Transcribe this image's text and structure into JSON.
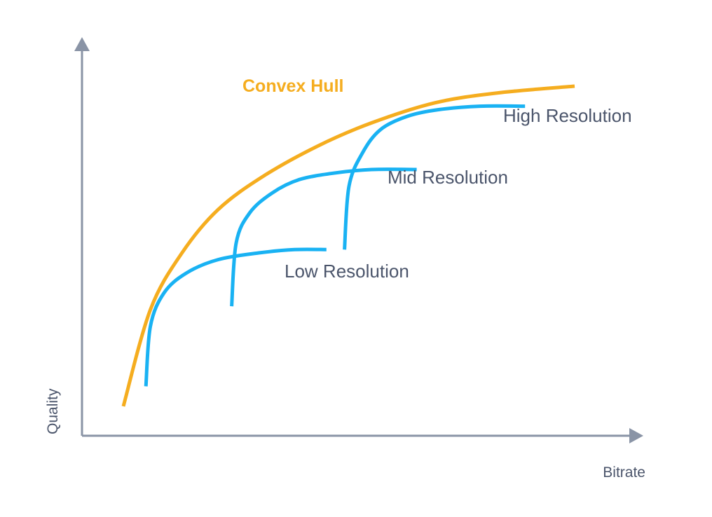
{
  "chart_data": {
    "type": "line",
    "title": "",
    "xlabel": "Bitrate",
    "ylabel": "Quality",
    "ticks": "none",
    "grid": false,
    "series": [
      {
        "name": "Convex Hull",
        "color": "#f5ad1f",
        "x": [
          0.0,
          0.06,
          0.13,
          0.21,
          0.31,
          0.43,
          0.55,
          0.69,
          0.83,
          1.0
        ],
        "y": [
          0.0,
          0.29,
          0.46,
          0.59,
          0.69,
          0.78,
          0.85,
          0.91,
          0.94,
          0.96
        ]
      },
      {
        "name": "Low Resolution",
        "color": "#19b2f3",
        "x": [
          0.05,
          0.06,
          0.09,
          0.14,
          0.21,
          0.3,
          0.38,
          0.45
        ],
        "y": [
          0.06,
          0.24,
          0.34,
          0.4,
          0.44,
          0.46,
          0.47,
          0.47
        ]
      },
      {
        "name": "Mid Resolution",
        "color": "#19b2f3",
        "x": [
          0.24,
          0.25,
          0.28,
          0.33,
          0.39,
          0.47,
          0.55,
          0.65
        ],
        "y": [
          0.3,
          0.49,
          0.58,
          0.64,
          0.68,
          0.7,
          0.71,
          0.71
        ]
      },
      {
        "name": "High Resolution",
        "color": "#19b2f3",
        "x": [
          0.49,
          0.5,
          0.53,
          0.57,
          0.63,
          0.7,
          0.79,
          0.89
        ],
        "y": [
          0.47,
          0.66,
          0.76,
          0.83,
          0.87,
          0.89,
          0.9,
          0.9
        ]
      }
    ]
  }
}
